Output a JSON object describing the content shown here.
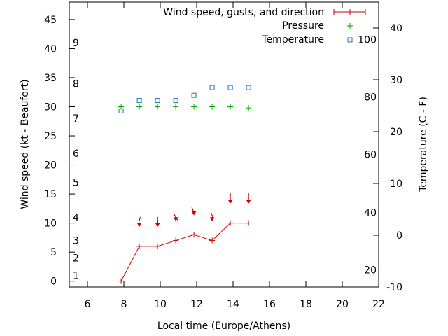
{
  "chart_data": {
    "type": "line",
    "xlabel": "Local time (Europe/Athens)",
    "ylabel": "Wind speed (kt - Beaufort)",
    "y2label": "Temperature (C - F)",
    "xlim": [
      5,
      22
    ],
    "ylim": [
      -1,
      48
    ],
    "y2lim": [
      -10,
      45
    ],
    "x_ticks": [
      6,
      8,
      10,
      12,
      14,
      16,
      18,
      20,
      22
    ],
    "y_ticks": [
      0,
      5,
      10,
      15,
      20,
      25,
      30,
      35,
      40,
      45
    ],
    "y2_ticks": [
      -10,
      0,
      10,
      20,
      30,
      40
    ],
    "beaufort_labels": [
      {
        "label": "1",
        "y": 1
      },
      {
        "label": "2",
        "y": 4
      },
      {
        "label": "3",
        "y": 7
      },
      {
        "label": "4",
        "y": 11
      },
      {
        "label": "5",
        "y": 17
      },
      {
        "label": "6",
        "y": 22
      },
      {
        "label": "7",
        "y": 28
      },
      {
        "label": "8",
        "y": 34
      },
      {
        "label": "9",
        "y": 41
      }
    ],
    "fahrenheit_labels": [
      {
        "label": "20",
        "y2": -6.7
      },
      {
        "label": "40",
        "y2": 4.4
      },
      {
        "label": "60",
        "y2": 15.6
      },
      {
        "label": "80",
        "y2": 26.7
      },
      {
        "label": "100",
        "y2": 37.8
      }
    ],
    "legend": {
      "position": "top-right",
      "entries": [
        "Wind speed, gusts, and direction",
        "Pressure",
        "Temperature"
      ]
    },
    "series": [
      {
        "name": "Wind speed, gusts, and direction",
        "color": "#cc0000",
        "x": [
          7.85,
          8.85,
          9.85,
          10.85,
          11.85,
          12.85,
          13.85,
          14.85
        ],
        "y": [
          0,
          6,
          6,
          7,
          8,
          7,
          10,
          10
        ],
        "arrow_y": [
          null,
          9.5,
          9.5,
          10.5,
          11.5,
          10.5,
          13.5,
          13.5
        ]
      },
      {
        "name": "Pressure",
        "color": "#00aa00",
        "x": [
          7.85,
          8.85,
          9.85,
          10.85,
          11.85,
          12.85,
          13.85,
          14.85
        ],
        "y": [
          30,
          30,
          30,
          30,
          30,
          30,
          30,
          29.8
        ]
      },
      {
        "name": "Temperature",
        "color": "#1f6fbf",
        "x": [
          7.85,
          8.85,
          9.85,
          10.85,
          11.85,
          12.85,
          13.85,
          14.85
        ],
        "y2": [
          24,
          26,
          26,
          26,
          27,
          28.5,
          28.5,
          28.5
        ]
      }
    ]
  }
}
